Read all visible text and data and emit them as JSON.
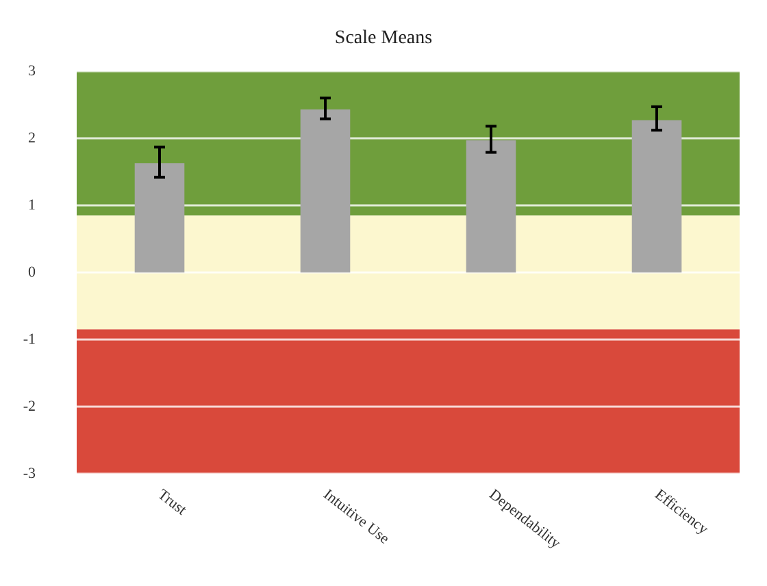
{
  "chart_data": {
    "type": "bar",
    "title": "Scale Means",
    "categories": [
      "Trust",
      "Intuitive Use",
      "Dependability",
      "Efficiency"
    ],
    "values": [
      1.63,
      2.43,
      1.97,
      2.27
    ],
    "color": "#a6a6a6",
    "errors": [
      [
        1.42,
        1.87
      ],
      [
        2.29,
        2.6
      ],
      [
        1.79,
        2.18
      ],
      [
        2.12,
        2.47
      ]
    ],
    "ylim": [
      -3,
      3
    ],
    "yticks": [
      -3,
      -2,
      -1,
      0,
      1,
      2,
      3
    ],
    "grid": "y",
    "bands": [
      {
        "axis": "y",
        "from": 0.85,
        "to": 3,
        "color": "#6f9e3c"
      },
      {
        "axis": "y",
        "from": -0.85,
        "to": 0.85,
        "color": "#fcf7cf"
      },
      {
        "axis": "y",
        "from": -3,
        "to": -0.85,
        "color": "#d9493b"
      }
    ]
  }
}
